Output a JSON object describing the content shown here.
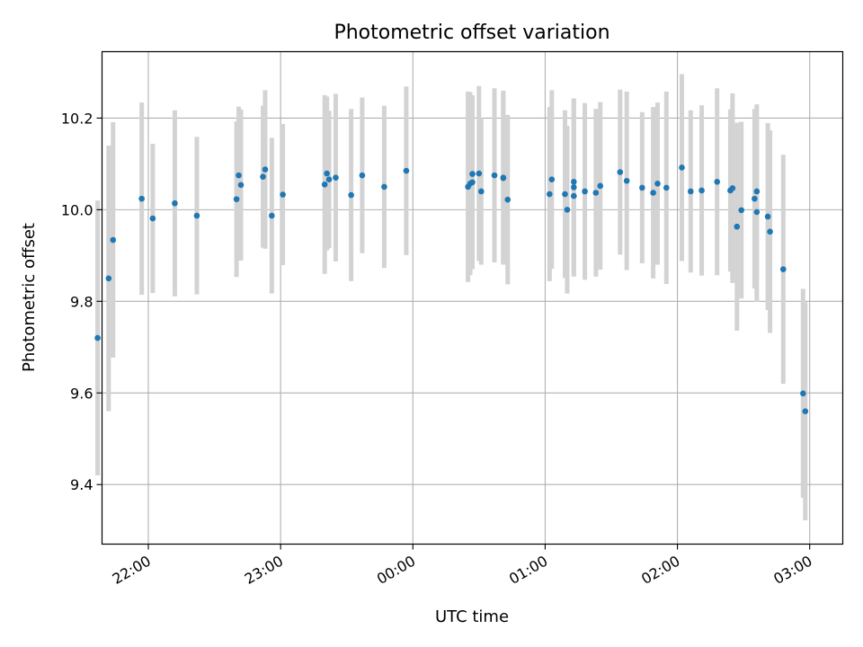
{
  "chart_data": {
    "type": "scatter",
    "title": "Photometric offset variation",
    "xlabel": "UTC time",
    "ylabel": "Photometric offset",
    "x_axis": "time",
    "x_range": [
      "21:39",
      "03:15"
    ],
    "xticks": [
      "22:00",
      "23:00",
      "00:00",
      "01:00",
      "02:00",
      "03:00"
    ],
    "ylim": [
      9.27,
      10.345
    ],
    "yticks": [
      "9.4",
      "9.6",
      "9.8",
      "10.0",
      "10.2"
    ],
    "grid": true,
    "colors": {
      "point": "#1f77b4",
      "errorbar": "#d3d3d3",
      "grid": "#b0b0b0"
    },
    "points": [
      {
        "x": "21:37",
        "y": 9.72,
        "err": 0.3
      },
      {
        "x": "21:42",
        "y": 9.85,
        "err": 0.29
      },
      {
        "x": "21:44",
        "y": 9.934,
        "err": 0.257
      },
      {
        "x": "21:57",
        "y": 10.024,
        "err": 0.21
      },
      {
        "x": "22:02",
        "y": 9.981,
        "err": 0.163
      },
      {
        "x": "22:12",
        "y": 10.014,
        "err": 0.203
      },
      {
        "x": "22:22",
        "y": 9.987,
        "err": 0.172
      },
      {
        "x": "22:40",
        "y": 10.023,
        "err": 0.17
      },
      {
        "x": "22:41",
        "y": 10.075,
        "err": 0.15
      },
      {
        "x": "22:42",
        "y": 10.054,
        "err": 0.165
      },
      {
        "x": "22:52",
        "y": 10.072,
        "err": 0.155
      },
      {
        "x": "22:53",
        "y": 10.088,
        "err": 0.173
      },
      {
        "x": "22:56",
        "y": 9.987,
        "err": 0.17
      },
      {
        "x": "23:01",
        "y": 10.033,
        "err": 0.154
      },
      {
        "x": "23:20",
        "y": 10.055,
        "err": 0.195
      },
      {
        "x": "23:21",
        "y": 10.079,
        "err": 0.168
      },
      {
        "x": "23:22",
        "y": 10.066,
        "err": 0.15
      },
      {
        "x": "23:25",
        "y": 10.07,
        "err": 0.183
      },
      {
        "x": "23:32",
        "y": 10.032,
        "err": 0.188
      },
      {
        "x": "23:37",
        "y": 10.075,
        "err": 0.17
      },
      {
        "x": "23:47",
        "y": 10.05,
        "err": 0.177
      },
      {
        "x": "23:57",
        "y": 10.085,
        "err": 0.184
      },
      {
        "x": "00:25",
        "y": 10.05,
        "err": 0.208
      },
      {
        "x": "00:26",
        "y": 10.057,
        "err": 0.2
      },
      {
        "x": "00:27",
        "y": 10.078,
        "err": 0.16
      },
      {
        "x": "00:27",
        "y": 10.06,
        "err": 0.19
      },
      {
        "x": "00:30",
        "y": 10.079,
        "err": 0.191
      },
      {
        "x": "00:31",
        "y": 10.04,
        "err": 0.16
      },
      {
        "x": "00:37",
        "y": 10.075,
        "err": 0.19
      },
      {
        "x": "00:41",
        "y": 10.07,
        "err": 0.19
      },
      {
        "x": "00:41",
        "y": 10.069,
        "err": 0.186
      },
      {
        "x": "00:43",
        "y": 10.022,
        "err": 0.185
      },
      {
        "x": "01:02",
        "y": 10.034,
        "err": 0.19
      },
      {
        "x": "01:03",
        "y": 10.066,
        "err": 0.195
      },
      {
        "x": "01:09",
        "y": 10.034,
        "err": 0.183
      },
      {
        "x": "01:10",
        "y": 10.0,
        "err": 0.183
      },
      {
        "x": "01:13",
        "y": 10.061,
        "err": 0.182
      },
      {
        "x": "01:13",
        "y": 10.049,
        "err": 0.193
      },
      {
        "x": "01:13",
        "y": 10.03,
        "err": 0.176
      },
      {
        "x": "01:18",
        "y": 10.04,
        "err": 0.193
      },
      {
        "x": "01:23",
        "y": 10.037,
        "err": 0.183
      },
      {
        "x": "01:25",
        "y": 10.052,
        "err": 0.183
      },
      {
        "x": "01:34",
        "y": 10.082,
        "err": 0.18
      },
      {
        "x": "01:37",
        "y": 10.063,
        "err": 0.195
      },
      {
        "x": "01:44",
        "y": 10.048,
        "err": 0.165
      },
      {
        "x": "01:49",
        "y": 10.037,
        "err": 0.187
      },
      {
        "x": "01:51",
        "y": 10.057,
        "err": 0.177
      },
      {
        "x": "01:55",
        "y": 10.048,
        "err": 0.21
      },
      {
        "x": "02:02",
        "y": 10.092,
        "err": 0.204
      },
      {
        "x": "02:06",
        "y": 10.04,
        "err": 0.177
      },
      {
        "x": "02:11",
        "y": 10.042,
        "err": 0.186
      },
      {
        "x": "02:18",
        "y": 10.061,
        "err": 0.204
      },
      {
        "x": "02:24",
        "y": 10.042,
        "err": 0.177
      },
      {
        "x": "02:25",
        "y": 10.047,
        "err": 0.207
      },
      {
        "x": "02:27",
        "y": 9.963,
        "err": 0.227
      },
      {
        "x": "02:29",
        "y": 9.999,
        "err": 0.193
      },
      {
        "x": "02:35",
        "y": 10.024,
        "err": 0.196
      },
      {
        "x": "02:36",
        "y": 10.04,
        "err": 0.19
      },
      {
        "x": "02:36",
        "y": 9.995,
        "err": 0.196
      },
      {
        "x": "02:41",
        "y": 9.985,
        "err": 0.204
      },
      {
        "x": "02:42",
        "y": 9.952,
        "err": 0.221
      },
      {
        "x": "02:48",
        "y": 9.87,
        "err": 0.25
      },
      {
        "x": "02:57",
        "y": 9.599,
        "err": 0.228
      },
      {
        "x": "02:58",
        "y": 9.56,
        "err": 0.238
      }
    ]
  }
}
